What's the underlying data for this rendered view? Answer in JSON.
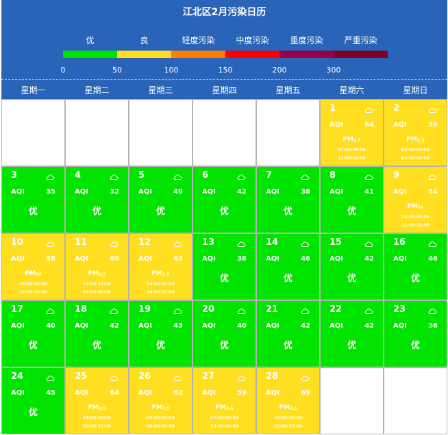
{
  "title": "江北区2月污染日历",
  "legend": {
    "levels": [
      {
        "label": "优",
        "color": "#00e400"
      },
      {
        "label": "良",
        "color": "#ffdf1f"
      },
      {
        "label": "轻度污染",
        "color": "#ff7e00"
      },
      {
        "label": "中度污染",
        "color": "#ff0000"
      },
      {
        "label": "重度污染",
        "color": "#99004c"
      },
      {
        "label": "严重污染",
        "color": "#7e0023"
      }
    ],
    "ticks": [
      "0",
      "50",
      "100",
      "150",
      "200",
      "300"
    ]
  },
  "weekdays": [
    "星期一",
    "星期二",
    "星期三",
    "星期四",
    "星期五",
    "星期六",
    "星期日"
  ],
  "aqi_label": "AQI",
  "good_label": "优",
  "days": [
    {
      "day": "1",
      "aqi": "84",
      "level": "good",
      "pollutant": "PM",
      "pollutant_sub": "2.5",
      "times": [
        "07:00-08:00",
        "21:00-22:00"
      ]
    },
    {
      "day": "2",
      "aqi": "59",
      "level": "good",
      "pollutant": "PM",
      "pollutant_sub": "2.5",
      "times": [
        "02:00-03:00",
        "01:00-02:00"
      ]
    },
    {
      "day": "3",
      "aqi": "35",
      "level": "excellent"
    },
    {
      "day": "4",
      "aqi": "32",
      "level": "excellent"
    },
    {
      "day": "5",
      "aqi": "49",
      "level": "excellent"
    },
    {
      "day": "6",
      "aqi": "42",
      "level": "excellent"
    },
    {
      "day": "7",
      "aqi": "38",
      "level": "excellent"
    },
    {
      "day": "8",
      "aqi": "41",
      "level": "excellent"
    },
    {
      "day": "9",
      "aqi": "54",
      "level": "good",
      "pollutant": "PM",
      "pollutant_sub": "10",
      "times": [
        "23:00-00:00",
        "21:00-22:00"
      ]
    },
    {
      "day": "10",
      "aqi": "58",
      "level": "good",
      "pollutant": "PM",
      "pollutant_sub": "10",
      "times": [
        "23:00-00:00",
        "22:00-23:00"
      ]
    },
    {
      "day": "11",
      "aqi": "60",
      "level": "good",
      "pollutant": "PM",
      "pollutant_sub": "2.5",
      "times": [
        "21:00-22:00",
        "01:00-02:00"
      ]
    },
    {
      "day": "12",
      "aqi": "63",
      "level": "good",
      "pollutant": "PM",
      "pollutant_sub": "2.5",
      "times": [
        "04:00-05:00",
        "10:00-11:00"
      ]
    },
    {
      "day": "13",
      "aqi": "38",
      "level": "excellent"
    },
    {
      "day": "14",
      "aqi": "46",
      "level": "excellent"
    },
    {
      "day": "15",
      "aqi": "42",
      "level": "excellent"
    },
    {
      "day": "16",
      "aqi": "46",
      "level": "excellent"
    },
    {
      "day": "17",
      "aqi": "40",
      "level": "excellent"
    },
    {
      "day": "18",
      "aqi": "42",
      "level": "excellent"
    },
    {
      "day": "19",
      "aqi": "43",
      "level": "excellent"
    },
    {
      "day": "20",
      "aqi": "40",
      "level": "excellent"
    },
    {
      "day": "21",
      "aqi": "42",
      "level": "excellent"
    },
    {
      "day": "22",
      "aqi": "42",
      "level": "excellent"
    },
    {
      "day": "23",
      "aqi": "36",
      "level": "excellent"
    },
    {
      "day": "24",
      "aqi": "45",
      "level": "excellent"
    },
    {
      "day": "25",
      "aqi": "64",
      "level": "good",
      "pollutant": "PM",
      "pollutant_sub": "2.5",
      "times": [
        "18:00-19:00",
        "20:00-21:00"
      ]
    },
    {
      "day": "26",
      "aqi": "62",
      "level": "good",
      "pollutant": "PM",
      "pollutant_sub": "2.5",
      "times": [
        "05:00-10:00",
        "08:00-09:00"
      ]
    },
    {
      "day": "27",
      "aqi": "59",
      "level": "good",
      "pollutant": "PM",
      "pollutant_sub": "2.5",
      "times": [
        "07:00-08:00",
        "23:00-00:00"
      ]
    },
    {
      "day": "28",
      "aqi": "69",
      "level": "good",
      "pollutant": "PM",
      "pollutant_sub": "2.5",
      "times": [
        "20:00-21:00",
        "22:00-23:00"
      ]
    }
  ],
  "weather_icon": "cloud-icon"
}
